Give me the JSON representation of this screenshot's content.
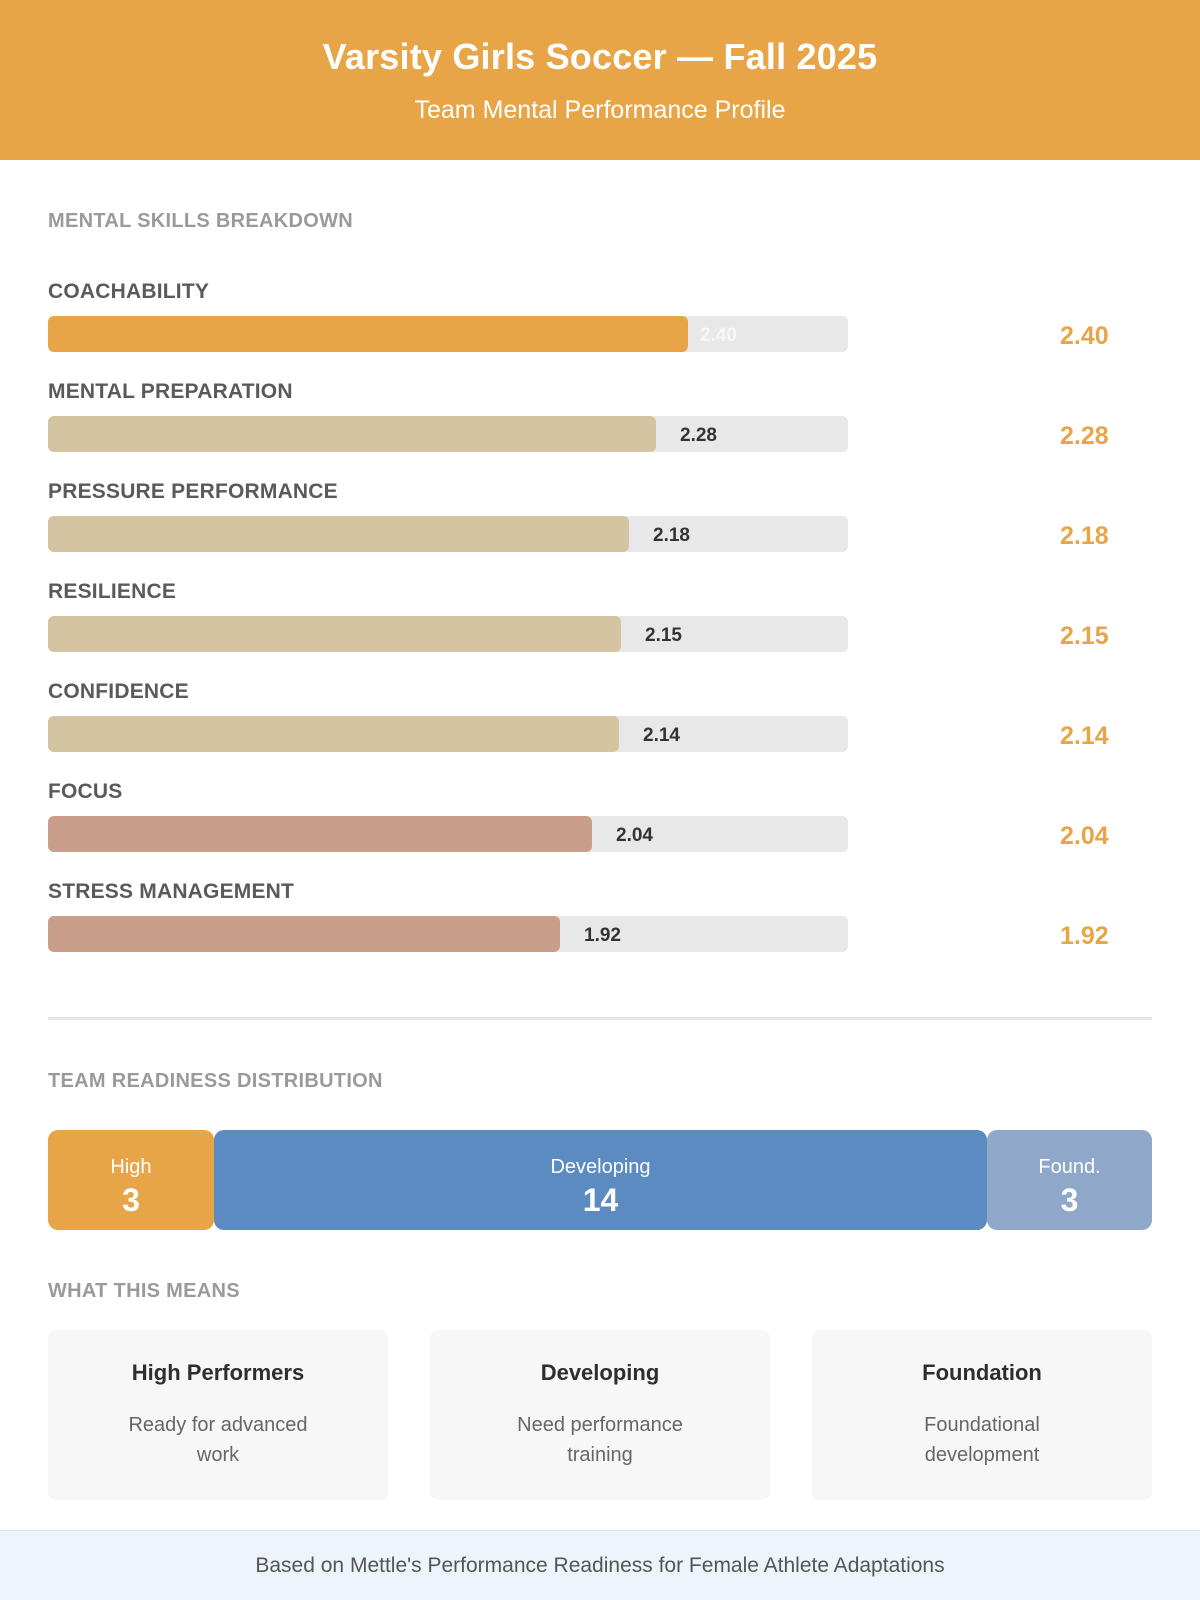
{
  "header": {
    "title": "Varsity Girls Soccer — Fall 2025",
    "subtitle": "Team Mental Performance Profile"
  },
  "sections": {
    "skills_title": "MENTAL SKILLS BREAKDOWN",
    "distribution_title": "TEAM READINESS DISTRIBUTION",
    "meaning_title": "WHAT THIS MEANS"
  },
  "chart_data": [
    {
      "type": "bar",
      "orientation": "horizontal",
      "title": "MENTAL SKILLS BREAKDOWN",
      "xlim": [
        0,
        3
      ],
      "categories": [
        "COACHABILITY",
        "MENTAL PREPARATION",
        "PRESSURE PERFORMANCE",
        "RESILIENCE",
        "CONFIDENCE",
        "FOCUS",
        "STRESS MANAGEMENT"
      ],
      "values": [
        2.4,
        2.28,
        2.18,
        2.15,
        2.14,
        2.04,
        1.92
      ],
      "value_labels": [
        "2.40",
        "2.28",
        "2.18",
        "2.15",
        "2.14",
        "2.04",
        "1.92"
      ],
      "bar_colors": [
        "#e8a547",
        "#d5c4a1",
        "#d5c4a1",
        "#d5c4a1",
        "#d5c4a1",
        "#c99e8a",
        "#c99e8a"
      ],
      "label_colors": [
        "#f7f7f7",
        "#333333",
        "#333333",
        "#333333",
        "#333333",
        "#333333",
        "#333333"
      ],
      "track_color": "#e8e8e8",
      "value_color": "#e8a547"
    },
    {
      "type": "bar",
      "orientation": "stacked-horizontal",
      "title": "TEAM READINESS DISTRIBUTION",
      "categories": [
        "High",
        "Developing",
        "Found."
      ],
      "values": [
        3,
        14,
        3
      ],
      "value_labels": [
        "3",
        "14",
        "3"
      ],
      "colors": [
        "#e8a547",
        "#5b8bc0",
        "#8fa8c9"
      ]
    }
  ],
  "cards": [
    {
      "title": "High Performers",
      "description": "Ready for advanced work"
    },
    {
      "title": "Developing",
      "description": "Need performance training"
    },
    {
      "title": "Foundation",
      "description": "Foundational development"
    }
  ],
  "footer": {
    "text": "Based on Mettle's Performance Readiness for Female Athlete Adaptations"
  }
}
